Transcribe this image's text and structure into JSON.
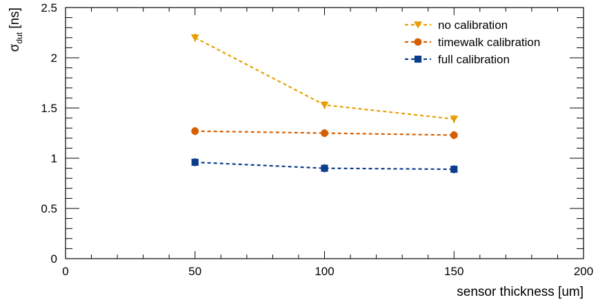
{
  "chart_data": {
    "type": "scatter",
    "xlabel": "sensor thickness [um]",
    "ylabel_main": "σ",
    "ylabel_sub": "dut",
    "ylabel_unit": "[ns]",
    "xlim": [
      0,
      200
    ],
    "ylim": [
      0,
      2.5
    ],
    "x_ticks": [
      0,
      50,
      100,
      150,
      200
    ],
    "x_tick_labels": [
      "0",
      "50",
      "100",
      "150",
      "200"
    ],
    "y_ticks": [
      0,
      0.5,
      1,
      1.5,
      2,
      2.5
    ],
    "y_tick_labels": [
      "0",
      "0.5",
      "1",
      "1.5",
      "2",
      "2.5"
    ],
    "grid": false,
    "legend_position": "top-right",
    "series": [
      {
        "name": "no calibration",
        "color": "#e69f00",
        "marker": "triangle-down",
        "line": "dashed",
        "x": [
          50,
          100,
          150
        ],
        "y": [
          2.2,
          1.53,
          1.39
        ],
        "err": [
          0.04,
          0.04,
          0.04
        ]
      },
      {
        "name": "timewalk calibration",
        "color": "#d55e00",
        "marker": "circle",
        "line": "dashed",
        "x": [
          50,
          100,
          150
        ],
        "y": [
          1.27,
          1.25,
          1.23
        ],
        "err": [
          0.04,
          0.04,
          0.04
        ]
      },
      {
        "name": "full calibration",
        "color": "#0c3c8c",
        "marker": "square",
        "line": "dashed",
        "x": [
          50,
          100,
          150
        ],
        "y": [
          0.96,
          0.9,
          0.89
        ],
        "err": [
          0.04,
          0.04,
          0.04
        ]
      }
    ]
  }
}
